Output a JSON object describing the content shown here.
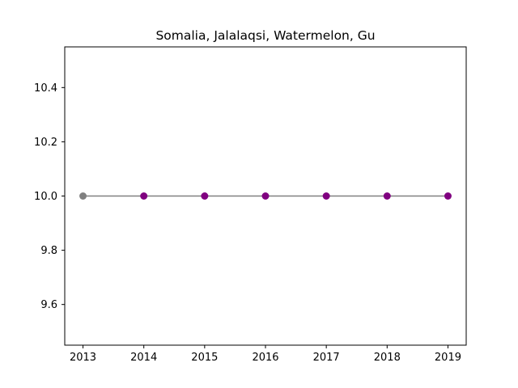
{
  "chart_data": {
    "type": "line",
    "title": "Somalia, Jalalaqsi, Watermelon, Gu",
    "xlabel": "",
    "ylabel": "",
    "x": [
      2013,
      2014,
      2015,
      2016,
      2017,
      2018,
      2019
    ],
    "series": [
      {
        "values": [
          10.0,
          10.0,
          10.0,
          10.0,
          10.0,
          10.0,
          10.0
        ],
        "line_color": "#808080",
        "marker_colors": [
          "#808080",
          "#800080",
          "#800080",
          "#800080",
          "#800080",
          "#800080",
          "#800080"
        ]
      }
    ],
    "xlim": [
      2012.7,
      2019.3
    ],
    "ylim": [
      9.45,
      10.55
    ],
    "xticks": [
      "2013",
      "2014",
      "2015",
      "2016",
      "2017",
      "2018",
      "2019"
    ],
    "yticks": [
      "9.6",
      "9.8",
      "10.0",
      "10.2",
      "10.4"
    ],
    "grid": false,
    "legend": "none"
  }
}
